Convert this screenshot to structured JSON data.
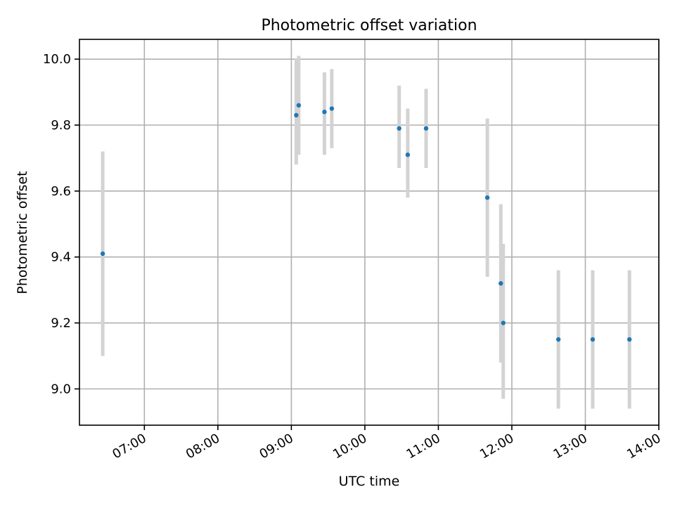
{
  "chart_data": {
    "type": "scatter",
    "title": "Photometric offset variation",
    "xlabel": "UTC time",
    "ylabel": "Photometric offset",
    "grid": true,
    "xlim": [
      "06:07",
      "14:00"
    ],
    "ylim": [
      8.89,
      10.06
    ],
    "x_ticks": [
      "07:00",
      "08:00",
      "09:00",
      "10:00",
      "11:00",
      "12:00",
      "13:00",
      "14:00"
    ],
    "y_ticks": [
      "9.0",
      "9.2",
      "9.4",
      "9.6",
      "9.8",
      "10.0"
    ],
    "colors": {
      "marker": "#1f77b4",
      "errorbar": "#d3d3d3"
    },
    "series": [
      {
        "points": [
          {
            "x": "06:26",
            "y": 9.41,
            "yerr_low": 9.1,
            "yerr_high": 9.72
          },
          {
            "x": "09:04",
            "y": 9.83,
            "yerr_low": 9.68,
            "yerr_high": 10.0
          },
          {
            "x": "09:06",
            "y": 9.86,
            "yerr_low": 9.71,
            "yerr_high": 10.01
          },
          {
            "x": "09:27",
            "y": 9.84,
            "yerr_low": 9.71,
            "yerr_high": 9.96
          },
          {
            "x": "09:33",
            "y": 9.85,
            "yerr_low": 9.73,
            "yerr_high": 9.97
          },
          {
            "x": "10:28",
            "y": 9.79,
            "yerr_low": 9.67,
            "yerr_high": 9.92
          },
          {
            "x": "10:35",
            "y": 9.71,
            "yerr_low": 9.58,
            "yerr_high": 9.85
          },
          {
            "x": "10:50",
            "y": 9.79,
            "yerr_low": 9.67,
            "yerr_high": 9.91
          },
          {
            "x": "11:40",
            "y": 9.58,
            "yerr_low": 9.34,
            "yerr_high": 9.82
          },
          {
            "x": "11:51",
            "y": 9.32,
            "yerr_low": 9.08,
            "yerr_high": 9.56
          },
          {
            "x": "11:53",
            "y": 9.2,
            "yerr_low": 8.97,
            "yerr_high": 9.44
          },
          {
            "x": "12:38",
            "y": 9.15,
            "yerr_low": 8.94,
            "yerr_high": 9.36
          },
          {
            "x": "13:06",
            "y": 9.15,
            "yerr_low": 8.94,
            "yerr_high": 9.36
          },
          {
            "x": "13:36",
            "y": 9.15,
            "yerr_low": 8.94,
            "yerr_high": 9.36
          }
        ]
      }
    ]
  }
}
